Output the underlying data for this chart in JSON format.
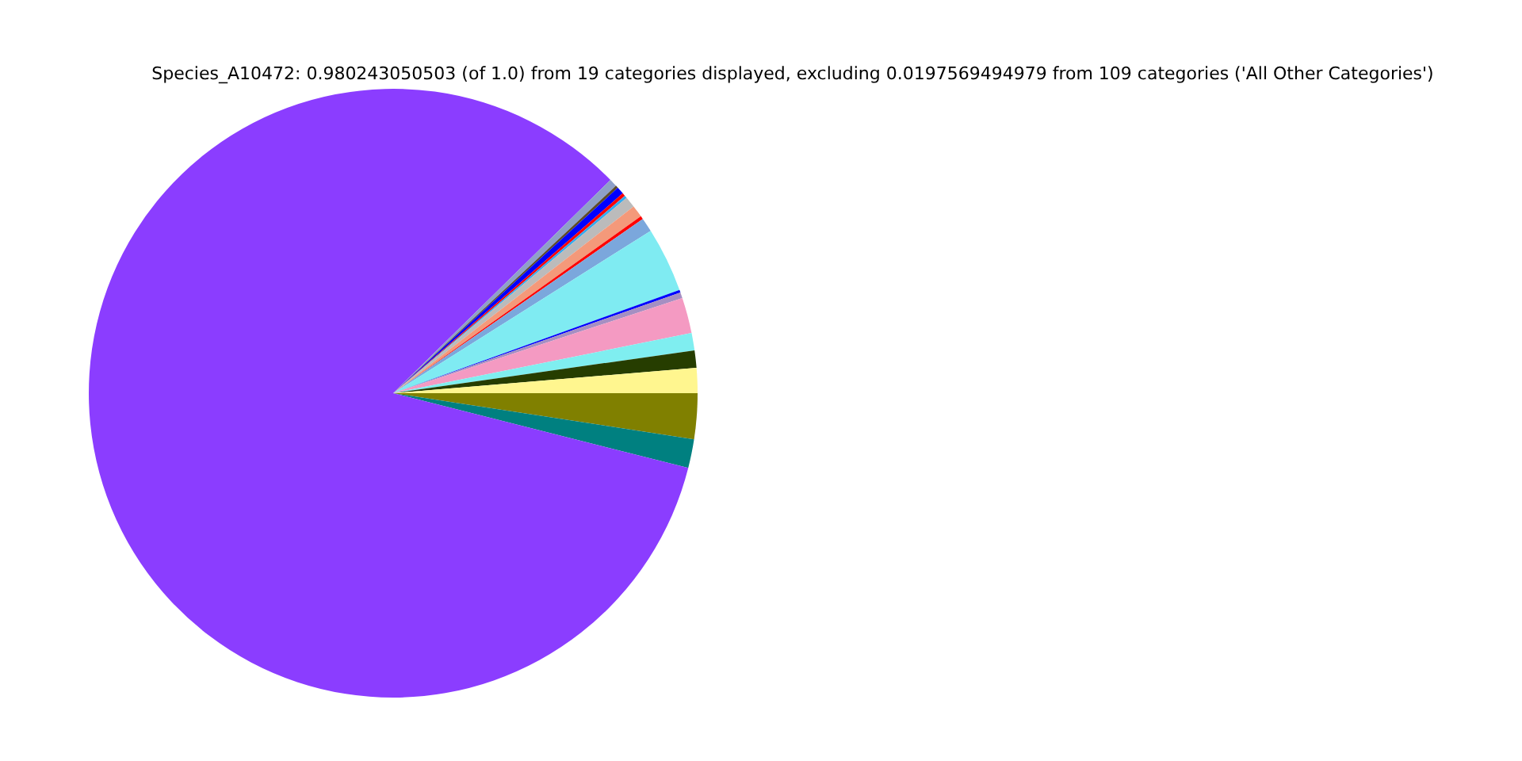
{
  "chart_data": {
    "type": "pie",
    "title": "Species_A10472: 0.980243050503 (of 1.0) from 19 categories displayed, excluding 0.0197569494979 from 109 categories ('All Other Categories')",
    "categories": [
      null,
      null,
      null,
      null,
      null,
      null,
      null,
      null,
      null,
      null,
      null,
      null,
      null,
      null,
      null,
      null,
      null,
      null,
      null
    ],
    "values": [
      1.33,
      0.92,
      0.92,
      1.89,
      0.31,
      0.14,
      3.44,
      0.75,
      0.17,
      0.64,
      0.58,
      0.14,
      0.17,
      0.39,
      0.14,
      0.42,
      83.7,
      1.53,
      2.42
    ],
    "colors": [
      "#fff68f",
      "#263d00",
      "#7feef0",
      "#f49ac2",
      "#a58fc2",
      "#0000ff",
      "#7febf2",
      "#7ba7dc",
      "#ff0000",
      "#f4997a",
      "#bbbbbb",
      "#33aaee",
      "#ff0000",
      "#0000ff",
      "#5c4a2a",
      "#8ea0c8",
      "#8b3dff",
      "#008080",
      "#808000"
    ],
    "legend": false
  }
}
